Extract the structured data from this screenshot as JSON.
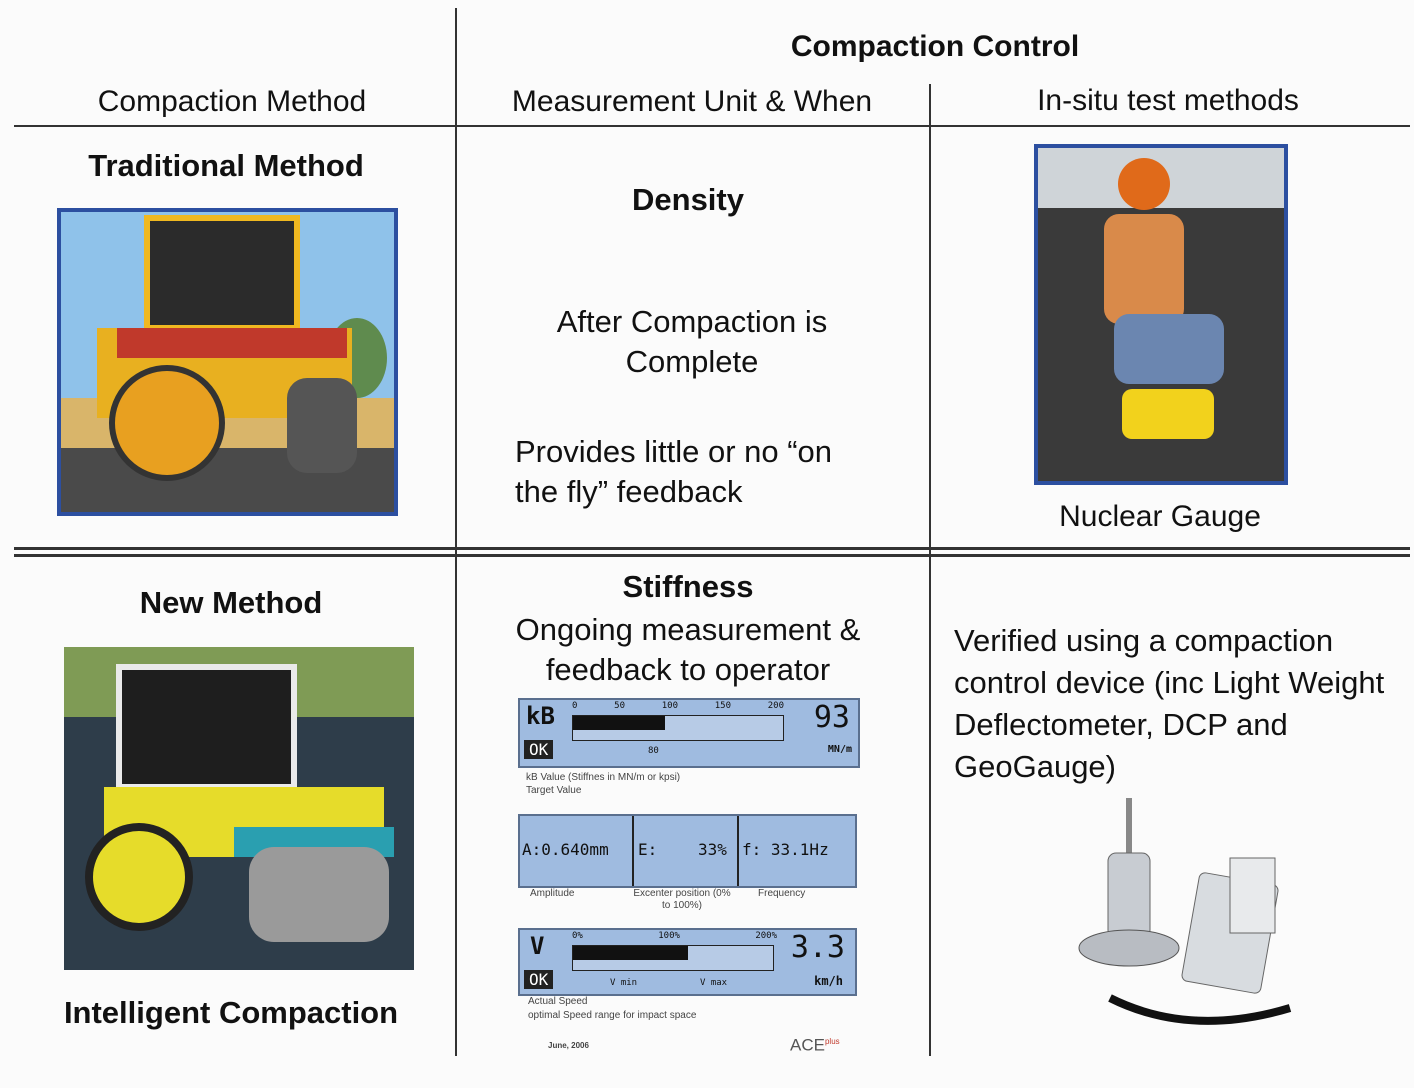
{
  "header": {
    "group_title": "Compaction Control",
    "columns": [
      "Compaction Method",
      "Measurement Unit & When",
      "In-situ test methods"
    ]
  },
  "rows": [
    {
      "method": "Traditional Method",
      "measure": "Density",
      "notes": [
        "After Compaction is Complete",
        "Provides little or no “on the fly” feedback"
      ],
      "test": "Nuclear Gauge"
    },
    {
      "method": "New Method",
      "caption": "Intelligent Compaction",
      "measure": "Stiffness",
      "notes": [
        "Ongoing measurement & feedback to operator"
      ],
      "test": "Verified using a compaction control device (inc Light Weight Deflectometer, DCP and GeoGauge)"
    }
  ],
  "display": {
    "panel1": {
      "symbol": "kB",
      "status": "OK",
      "ticks": [
        "0",
        "50",
        "100",
        "150",
        "200"
      ],
      "target": "80",
      "value": "93",
      "unit": "MN/m",
      "notes": [
        "kB Value (Stiffnes in MN/m or kpsi)",
        "Target Value"
      ]
    },
    "panel2": {
      "cells": [
        "A:0.640mm",
        "E:",
        "33%",
        "f: 33.1Hz"
      ],
      "notes": [
        "Amplitude",
        "Excenter position (0% to 100%)",
        "Frequency"
      ]
    },
    "panel3": {
      "symbol": "V",
      "status": "OK",
      "ticks": [
        "0%",
        "100%",
        "200%"
      ],
      "marks": [
        "V min",
        "V max"
      ],
      "value": "3.3",
      "unit": "km/h",
      "notes": [
        "Actual Speed",
        "optimal Speed range for impact space"
      ]
    },
    "footer": {
      "date": "June, 2006",
      "brand": "ACE",
      "brand_sup": "plus"
    }
  }
}
